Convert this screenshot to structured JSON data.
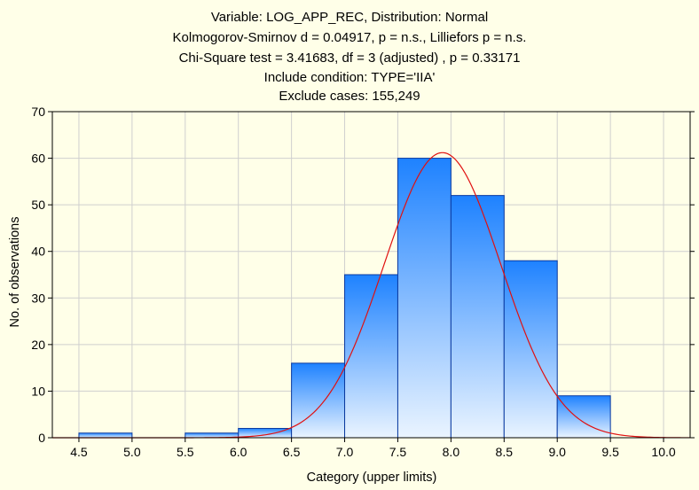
{
  "chart_data": {
    "type": "bar",
    "title_lines": [
      "Variable: LOG_APP_REC, Distribution: Normal",
      "Kolmogorov-Smirnov d = 0.04917, p = n.s., Lilliefors p = n.s.",
      "Chi-Square test = 3.41683, df = 3 (adjusted) , p = 0.33171",
      "Include condition: TYPE='IIA'",
      "Exclude cases: 155,249"
    ],
    "xlabel": "Category (upper limits)",
    "ylabel": "No. of observations",
    "xlim": [
      4.25,
      10.25
    ],
    "ylim": [
      0,
      70
    ],
    "xticks": [
      "4.5",
      "5.0",
      "5.5",
      "6.0",
      "6.5",
      "7.0",
      "7.5",
      "8.0",
      "8.5",
      "9.0",
      "9.5",
      "10.0"
    ],
    "yticks": [
      "0",
      "10",
      "20",
      "30",
      "40",
      "50",
      "60",
      "70"
    ],
    "bins": [
      {
        "from": 4.5,
        "to": 5.0,
        "count": 1
      },
      {
        "from": 5.0,
        "to": 5.5,
        "count": 0
      },
      {
        "from": 5.5,
        "to": 6.0,
        "count": 1
      },
      {
        "from": 6.0,
        "to": 6.5,
        "count": 2
      },
      {
        "from": 6.5,
        "to": 7.0,
        "count": 16
      },
      {
        "from": 7.0,
        "to": 7.5,
        "count": 35
      },
      {
        "from": 7.5,
        "to": 8.0,
        "count": 60
      },
      {
        "from": 8.0,
        "to": 8.5,
        "count": 52
      },
      {
        "from": 8.5,
        "to": 9.0,
        "count": 38
      },
      {
        "from": 9.0,
        "to": 9.5,
        "count": 9
      }
    ],
    "normal_curve": {
      "mean": 7.92,
      "sd": 0.55,
      "peak": 61.2
    },
    "grid": true,
    "colors": {
      "background": "#ffffe8",
      "bar_top": "#1e82ff",
      "bar_bottom": "#eaf4ff",
      "bar_edge": "#0a3aa0",
      "curve": "#e01010",
      "grid": "#cfcfcf"
    }
  }
}
